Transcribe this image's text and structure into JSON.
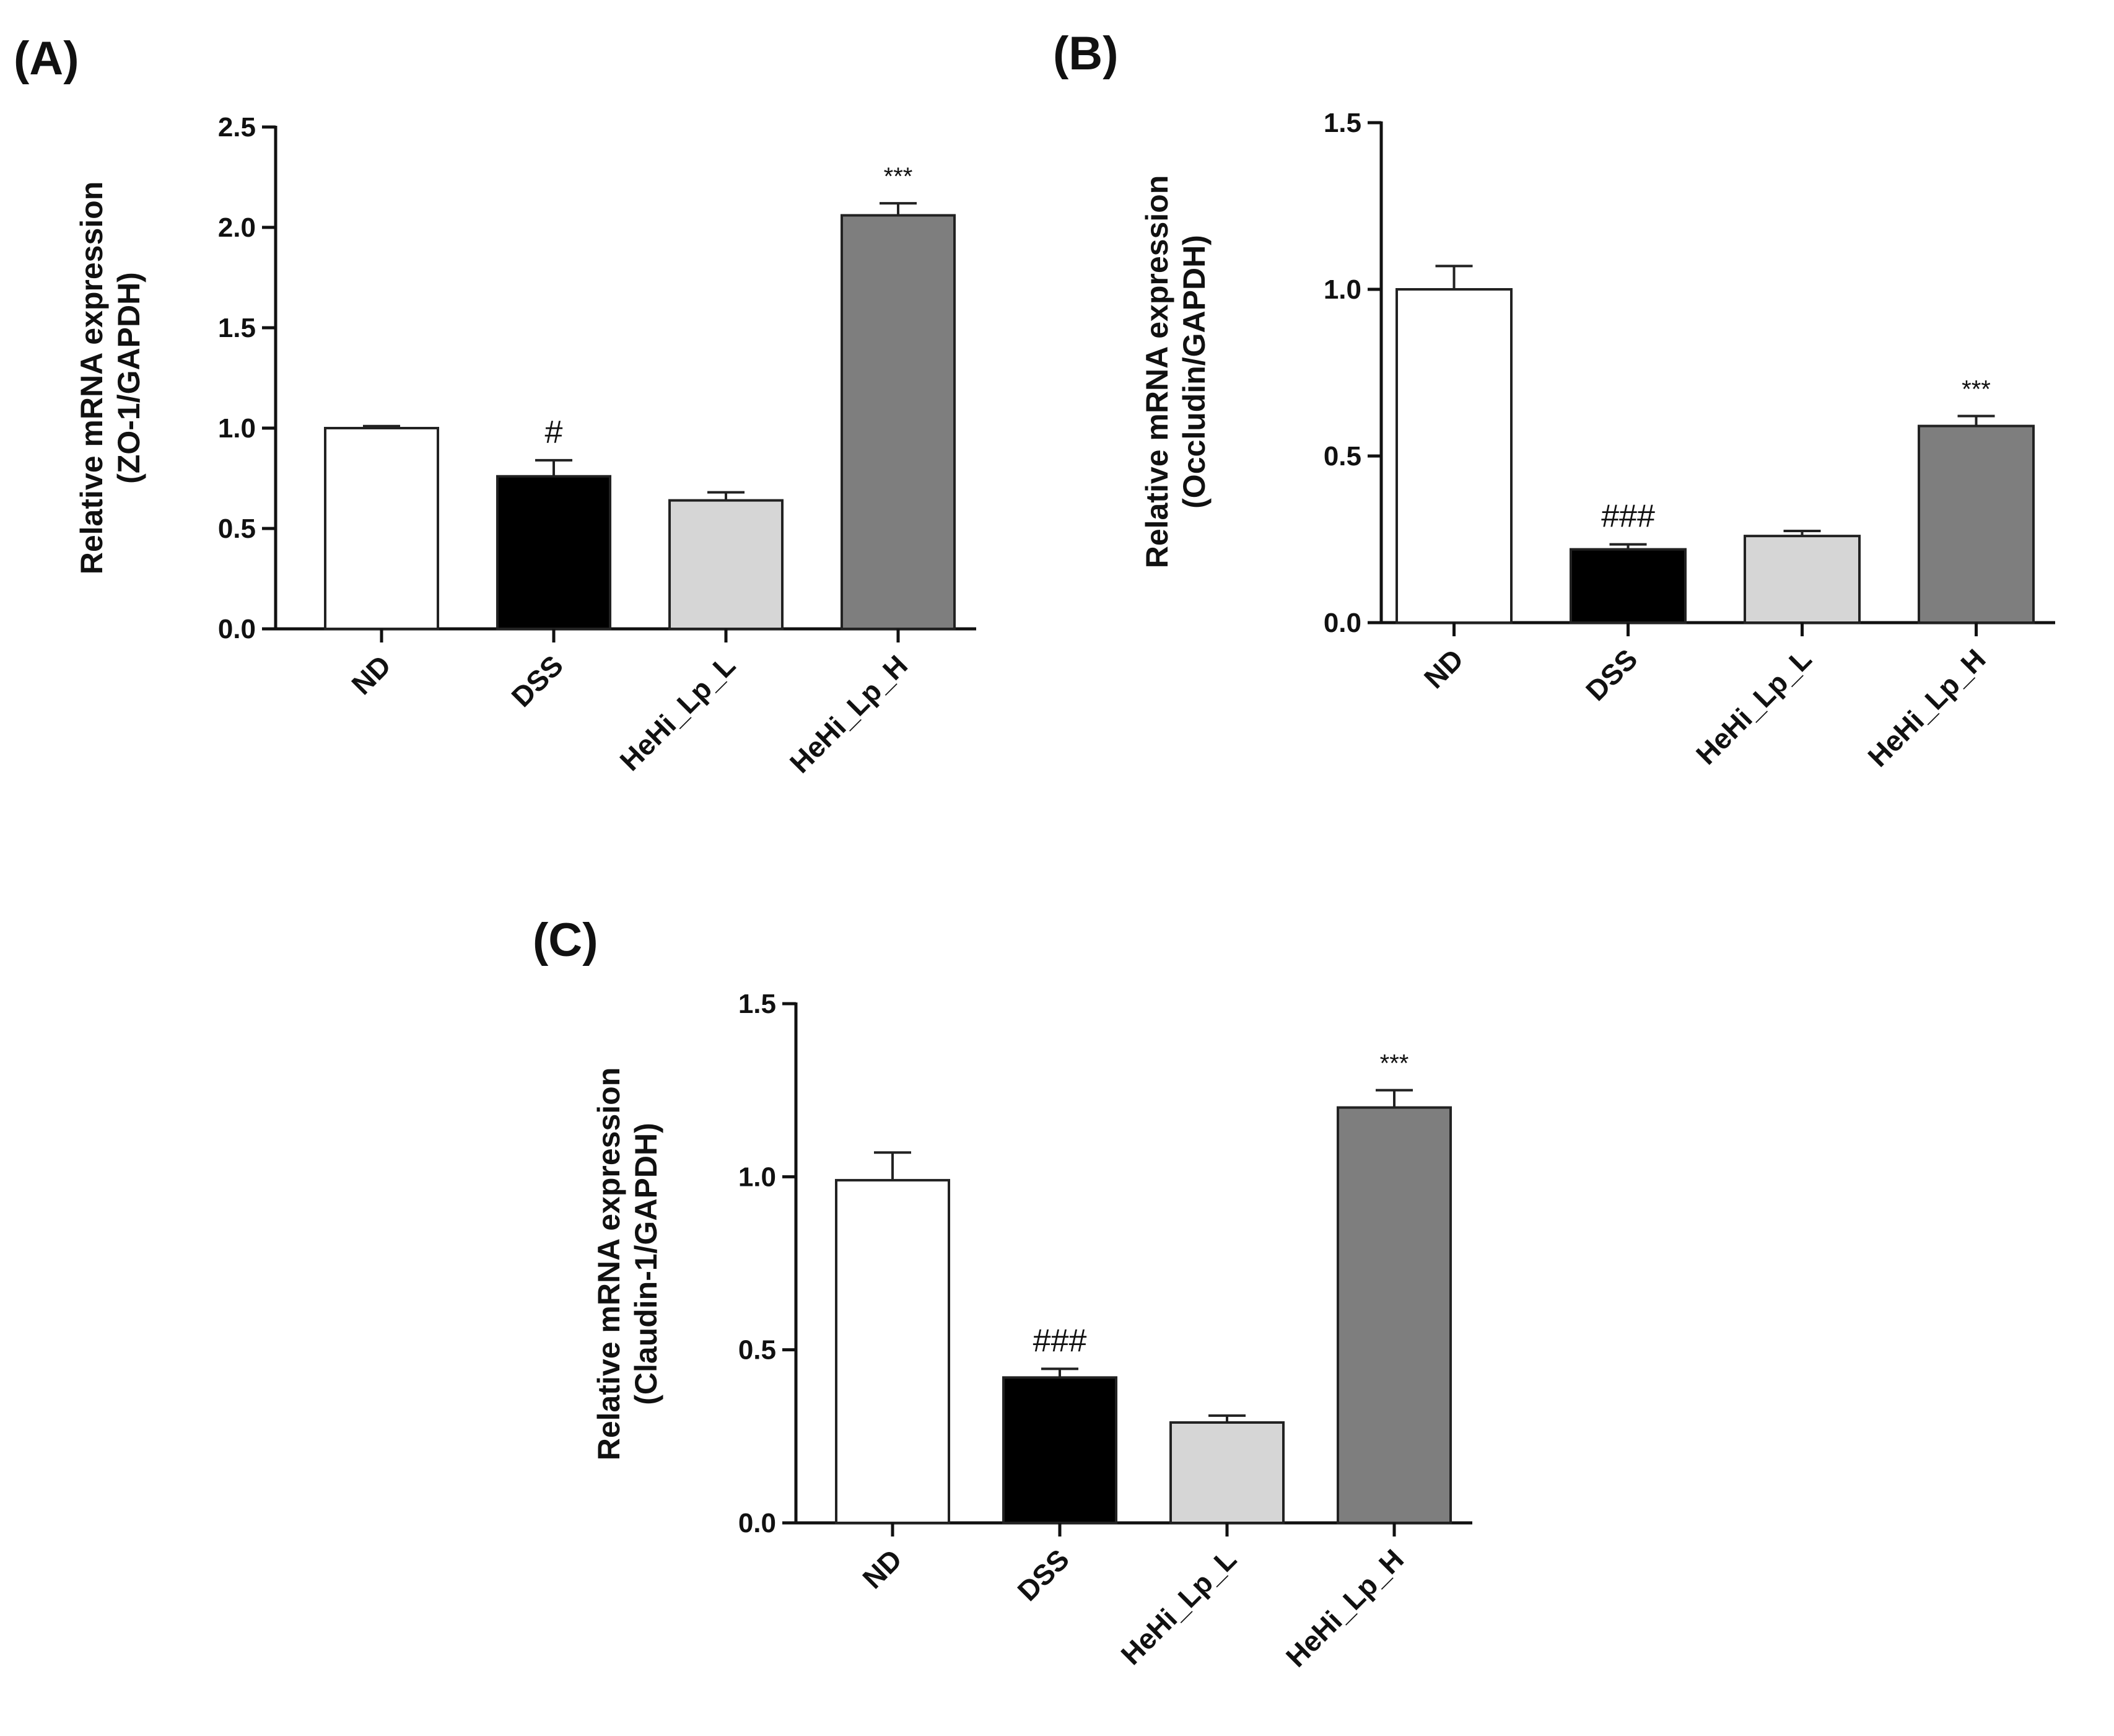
{
  "colors": {
    "ND": "#ffffff",
    "DSS": "#000000",
    "HeHi_Lp_L": "#d6d6d6",
    "HeHi_Lp_H": "#7e7e7e",
    "axis": "#111111"
  },
  "chart_data": [
    {
      "type": "bar",
      "panel_label": "(A)",
      "ylabel_line1": "Relative mRNA expression",
      "ylabel_line2": "(ZO-1/GAPDH)",
      "categories": [
        "ND",
        "DSS",
        "HeHi_Lp_L",
        "HeHi_Lp_H"
      ],
      "values": [
        1.0,
        0.76,
        0.64,
        2.06
      ],
      "errors": [
        0.01,
        0.08,
        0.04,
        0.06
      ],
      "annotations": [
        "",
        "#",
        "",
        "***"
      ],
      "ylim": [
        0,
        2.5
      ],
      "yticks": [
        "0.0",
        "0.5",
        "1.0",
        "1.5",
        "2.0",
        "2.5"
      ]
    },
    {
      "type": "bar",
      "panel_label": "(B)",
      "ylabel_line1": "Relative mRNA expression",
      "ylabel_line2": "(Occludin/GAPDH)",
      "categories": [
        "ND",
        "DSS",
        "HeHi_Lp_L",
        "HeHi_Lp_H"
      ],
      "values": [
        1.0,
        0.22,
        0.26,
        0.59
      ],
      "errors": [
        0.07,
        0.015,
        0.015,
        0.03
      ],
      "annotations": [
        "",
        "###",
        "",
        "***"
      ],
      "ylim": [
        0,
        1.5
      ],
      "yticks": [
        "0.0",
        "0.5",
        "1.0",
        "1.5"
      ]
    },
    {
      "type": "bar",
      "panel_label": "(C)",
      "ylabel_line1": "Relative mRNA expression",
      "ylabel_line2": "(Claudin-1/GAPDH)",
      "categories": [
        "ND",
        "DSS",
        "HeHi_Lp_L",
        "HeHi_Lp_H"
      ],
      "values": [
        0.99,
        0.42,
        0.29,
        1.2
      ],
      "errors": [
        0.08,
        0.025,
        0.02,
        0.05
      ],
      "annotations": [
        "",
        "###",
        "",
        "***"
      ],
      "ylim": [
        0,
        1.5
      ],
      "yticks": [
        "0.0",
        "0.5",
        "1.0",
        "1.5"
      ]
    }
  ]
}
